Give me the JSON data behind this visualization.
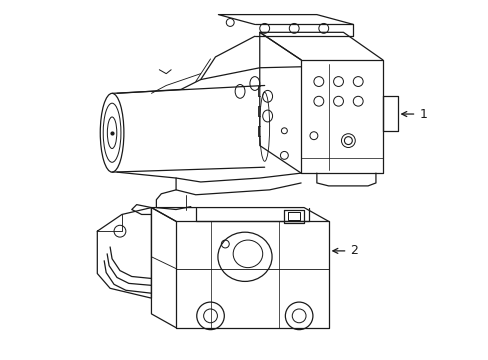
{
  "bg_color": "#ffffff",
  "line_color": "#1a1a1a",
  "line_width": 0.9,
  "fig_width": 4.89,
  "fig_height": 3.6,
  "dpi": 100
}
